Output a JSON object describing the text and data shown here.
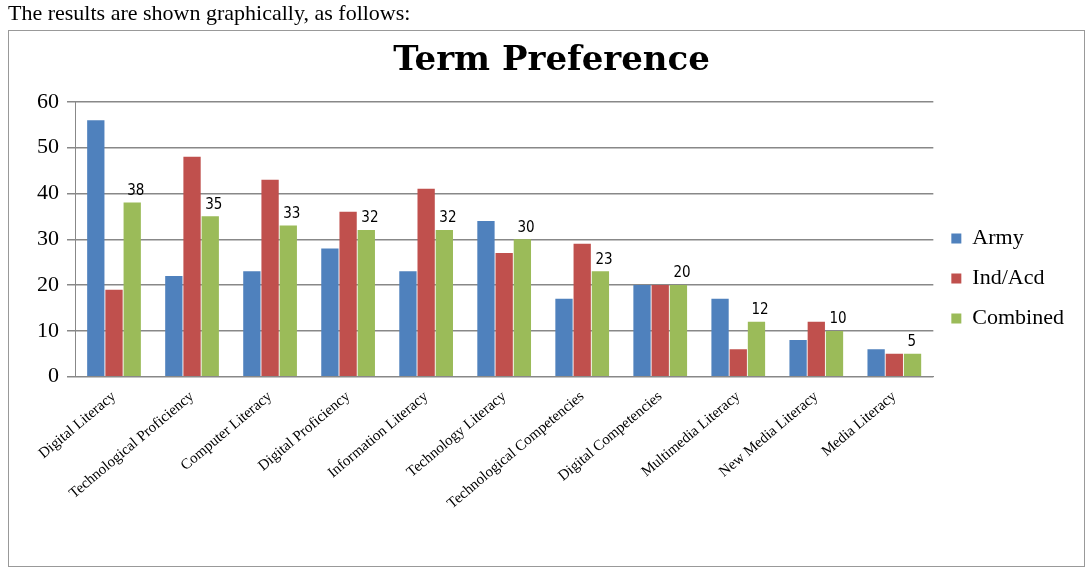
{
  "chart_data": {
    "type": "bar",
    "title": "Term Preference",
    "annotations": [
      "The results are shown graphically, as follows:"
    ],
    "categories": [
      "Digital Literacy",
      "Technological Proficiency",
      "Computer Literacy",
      "Digital Proficiency",
      "Information Literacy",
      "Technology Literacy",
      "Technological Competencies",
      "Digital Competencies",
      "Multimedia Literacy",
      "New Media Literacy",
      "Media Literacy"
    ],
    "series": [
      {
        "name": "Army",
        "color": "#4f81bd",
        "values": [
          56,
          22,
          23,
          28,
          23,
          34,
          17,
          20,
          17,
          8,
          6
        ]
      },
      {
        "name": "Ind/Acd",
        "color": "#c0504d",
        "values": [
          19,
          48,
          43,
          36,
          41,
          27,
          29,
          20,
          6,
          12,
          5
        ]
      },
      {
        "name": "Combined",
        "color": "#9bbb59",
        "values": [
          38,
          35,
          33,
          32,
          32,
          30,
          23,
          20,
          12,
          10,
          5
        ],
        "value_labels": [
          "38",
          "35",
          "33",
          "32",
          "32",
          "30",
          "23",
          "20",
          "12",
          "10",
          "5"
        ]
      }
    ],
    "ylim": [
      0,
      60
    ],
    "yticks": [
      0,
      10,
      20,
      30,
      40,
      50,
      60
    ],
    "grid": "y",
    "legend": "right"
  }
}
